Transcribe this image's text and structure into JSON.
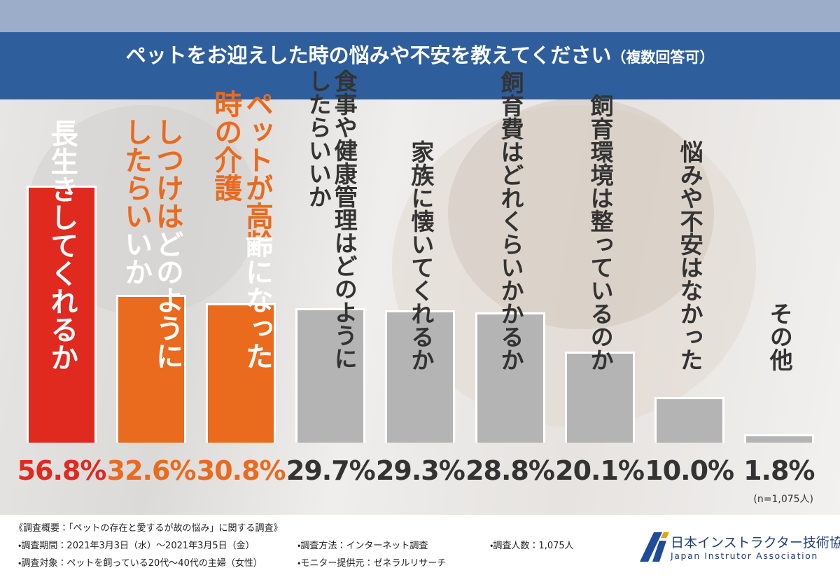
{
  "chart_data": {
    "type": "bar",
    "title": "ペットをお迎えした時の悩みや不安を教えてください",
    "subtitle": "（複数回答可）",
    "categories": [
      "長生きしてくれるか",
      "しつけはどのようにしたらいいか",
      "ペットが高齢になった時の介護",
      "食事や健康管理はどのようにしたらいいか",
      "家族に懐いてくれるか",
      "飼育費はどれくらいかかるか",
      "飼育環境は整っているのか",
      "悩みや不安はなかった",
      "その他"
    ],
    "values": [
      56.8,
      32.6,
      30.8,
      29.7,
      29.3,
      28.8,
      20.1,
      10.0,
      1.8
    ],
    "value_labels": [
      "56.8%",
      "32.6%",
      "30.8%",
      "29.7%",
      "29.3%",
      "28.8%",
      "20.1%",
      "10.0%",
      "1.8%"
    ],
    "colors": [
      "#e0291f",
      "#ea6a1e",
      "#ea6a1e",
      "#b4b4b4",
      "#b4b4b4",
      "#b4b4b4",
      "#b4b4b4",
      "#b4b4b4",
      "#b4b4b4"
    ],
    "note": "(n=1,075人)"
  },
  "footer": {
    "title": "《調査概要：「ペットの存在と愛するが故の悩み」に関する調査》",
    "items": [
      "・調査期間：2021年3月3日（水）～2021年3月5日（金）",
      "・調査方法：インターネット調査",
      "・調査人数：1,075人",
      "・調査対象：ペットを飼っている20代～40代の主婦（女性）",
      "・モニター提供元：ゼネラルリサーチ"
    ]
  },
  "logo": {
    "name": "日本インストラクター技術協会",
    "english": "Japan Instrutor Association"
  }
}
